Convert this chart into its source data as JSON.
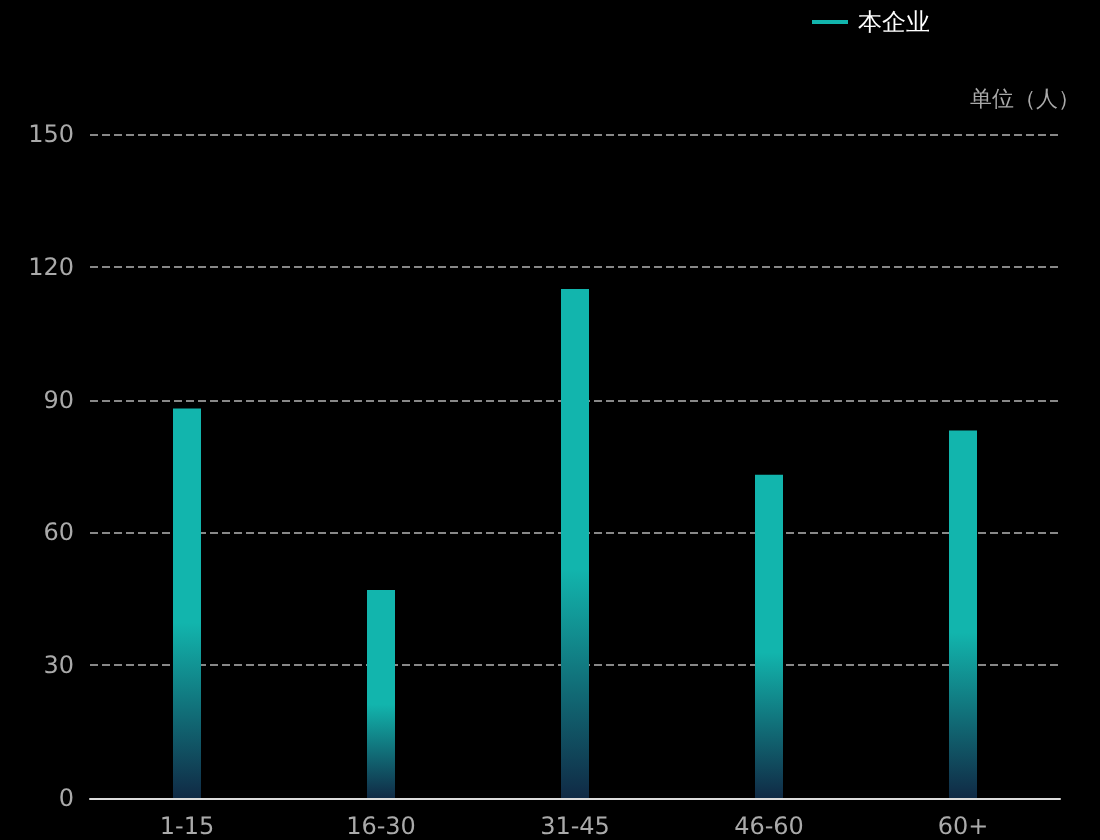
{
  "chart_data": {
    "type": "bar",
    "ylabel": "单位（人）",
    "categories": [
      "1-15",
      "16-30",
      "31-45",
      "46-60",
      "60+"
    ],
    "series": [
      {
        "name": "本企业",
        "color": "#12b5ad",
        "values": [
          88,
          47,
          115,
          73,
          83
        ]
      }
    ],
    "ylim": [
      0,
      150
    ],
    "yticks": [
      0,
      30,
      60,
      90,
      120,
      150
    ],
    "grid": "y",
    "legend": "top right"
  }
}
